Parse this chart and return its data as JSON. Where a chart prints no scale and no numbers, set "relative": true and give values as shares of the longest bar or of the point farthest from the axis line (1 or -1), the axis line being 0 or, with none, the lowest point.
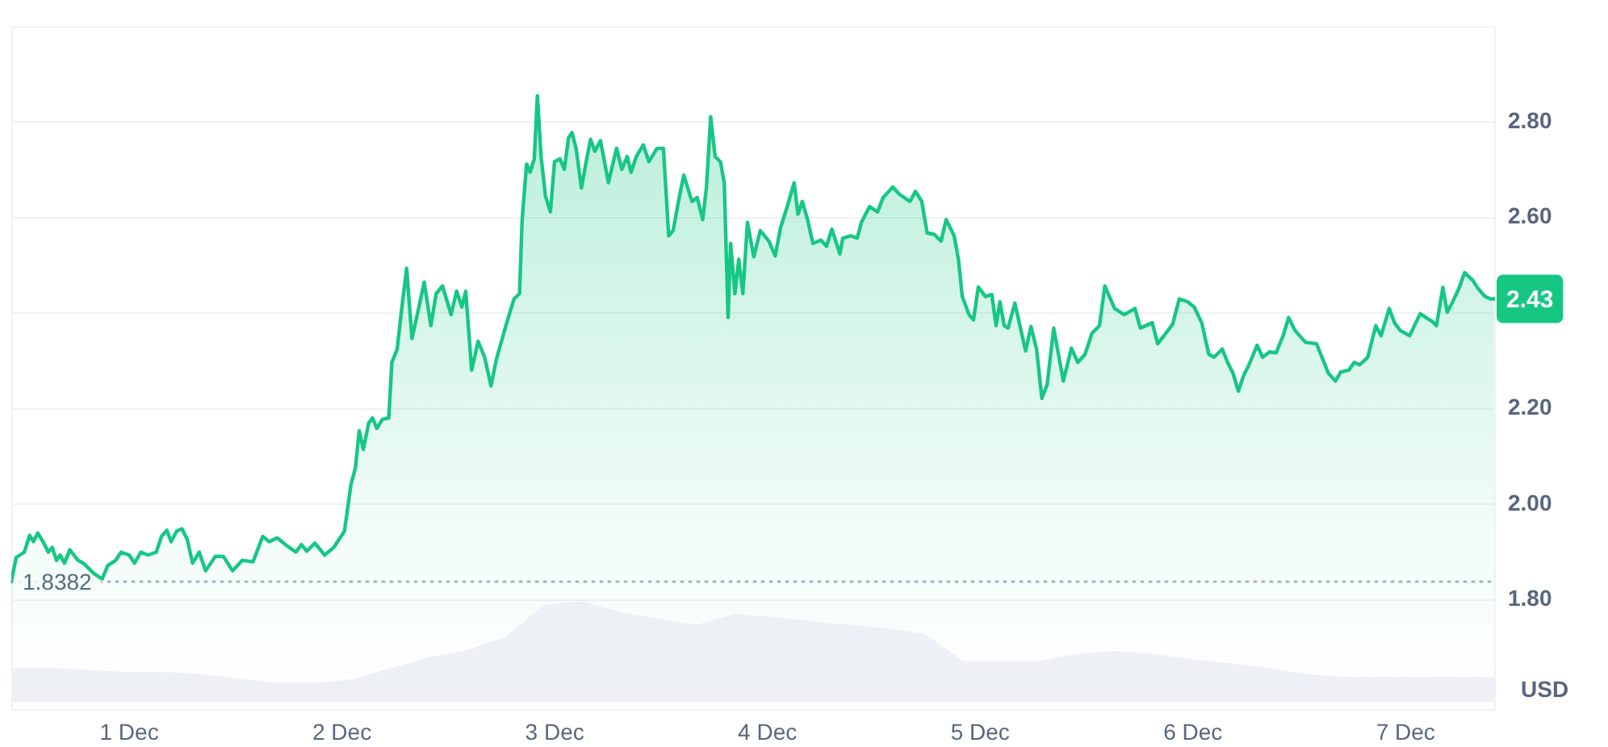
{
  "chart_data": [
    {
      "type": "area",
      "ylabel": "USD",
      "color": "#16c784",
      "x": [
        "--11-30T10:42",
        "--11-30T11:15",
        "--11-30T12:10",
        "--11-30T12:46",
        "--11-30T13:12",
        "--11-30T13:41",
        "--11-30T14:17",
        "--11-30T14:53",
        "--11-30T15:19",
        "--11-30T15:48",
        "--11-30T16:13",
        "--11-30T16:42",
        "--11-30T17:18",
        "--11-30T18:13",
        "--11-30T18:50",
        "--11-30T20:02",
        "--11-30T20:57",
        "--11-30T21:35",
        "--11-30T22:29",
        "--11-30T23:05",
        "--12-01T00:00",
        "--12-01T00:36",
        "--12-01T01:19",
        "--12-01T02:08",
        "--12-01T03:03",
        "--12-01T03:39",
        "--12-01T04:15",
        "--12-01T04:44",
        "--12-01T05:21",
        "--12-01T05:57",
        "--12-01T06:33",
        "--12-01T07:09",
        "--12-01T07:54",
        "--12-01T08:37",
        "--12-01T09:43",
        "--12-01T10:38",
        "--12-01T11:40",
        "--12-01T12:46",
        "--12-01T13:58",
        "--12-01T15:04",
        "--12-01T15:48",
        "--12-01T16:42",
        "--12-01T17:37",
        "--12-01T18:49",
        "--12-01T19:26",
        "--12-01T20:02",
        "--12-01T20:57",
        "--12-01T22:03",
        "--12-01T23:05",
        "--12-02T00:17",
        "--12-02T01:02",
        "--12-02T01:31",
        "--12-02T01:57",
        "--12-02T02:25",
        "--12-02T03:01",
        "--12-02T03:27",
        "--12-02T03:56",
        "--12-02T04:34",
        "--12-02T05:17",
        "--12-02T05:38",
        "--12-02T06:14",
        "--12-02T06:40",
        "--12-02T07:18",
        "--12-02T07:54",
        "--12-02T08:30",
        "--12-02T09:17",
        "--12-02T10:02",
        "--12-02T10:38",
        "--12-02T11:21",
        "--12-02T12:19",
        "--12-02T12:56",
        "--12-02T13:32",
        "--12-02T13:58",
        "--12-02T14:38",
        "--12-02T15:22",
        "--12-02T16:06",
        "--12-02T16:49",
        "--12-02T17:25",
        "--12-02T18:30",
        "--12-02T19:25",
        "--12-02T20:02",
        "--12-02T20:20",
        "--12-02T20:50",
        "--12-02T21:14",
        "--12-02T21:42",
        "--12-02T22:03",
        "--12-02T22:28",
        "--12-02T22:58",
        "--12-02T23:31",
        "--12-02T23:59",
        "--12-03T00:36",
        "--12-03T01:05",
        "--12-03T01:34",
        "--12-03T01:57",
        "--12-03T02:25",
        "--12-03T03:01",
        "--12-03T03:37",
        "--12-03T04:03",
        "--12-03T04:32",
        "--12-03T05:10",
        "--12-03T06:04",
        "--12-03T06:59",
        "--12-03T07:35",
        "--12-03T08:11",
        "--12-03T08:37",
        "--12-03T09:13",
        "--12-03T10:00",
        "--12-03T10:38",
        "--12-03T11:33",
        "--12-03T12:16",
        "--12-03T12:52",
        "--12-03T13:22",
        "--12-03T13:58",
        "--12-03T14:34",
        "--12-03T15:29",
        "--12-03T16:05",
        "--12-03T16:42",
        "--12-03T17:07",
        "--12-03T17:36",
        "--12-03T18:06",
        "--12-03T18:42",
        "--12-03T19:08",
        "--12-03T19:34",
        "--12-03T19:51",
        "--12-03T20:20",
        "--12-03T20:46",
        "--12-03T21:14",
        "--12-03T21:45",
        "--12-03T22:28",
        "--12-03T23:12",
        "--12-04T00:10",
        "--12-04T00:53",
        "--12-04T01:29",
        "--12-04T02:14",
        "--12-04T03:01",
        "--12-04T03:27",
        "--12-04T03:56",
        "--12-04T04:32",
        "--12-04T05:08",
        "--12-04T06:03",
        "--12-04T06:40",
        "--12-04T07:16",
        "--12-04T08:11",
        "--12-04T08:30",
        "--12-04T09:24",
        "--12-04T10:08",
        "--12-04T10:36",
        "--12-04T11:31",
        "--12-04T12:26",
        "--12-04T13:03",
        "--12-04T14:08",
        "--12-04T14:53",
        "--12-04T16:05",
        "--12-04T16:42",
        "--12-04T17:25",
        "--12-04T18:01",
        "--12-04T18:49",
        "--12-04T19:36",
        "--12-04T20:10",
        "--12-04T21:04",
        "--12-04T21:33",
        "--12-04T21:59",
        "--12-04T22:45",
        "--12-04T23:15",
        "--12-04T23:48",
        "--12-05T00:35",
        "--12-05T01:19",
        "--12-05T01:48",
        "--12-05T02:14",
        "--12-05T02:43",
        "--12-05T03:09",
        "--12-05T03:55",
        "--12-05T05:08",
        "--12-05T05:44",
        "--12-05T06:22",
        "--12-05T06:58",
        "--12-05T07:34",
        "--12-05T08:18",
        "--12-05T09:23",
        "--12-05T10:18",
        "--12-05T11:01",
        "--12-05T11:50",
        "--12-05T12:37",
        "--12-05T13:28",
        "--12-05T14:04",
        "--12-05T15:10",
        "--12-05T16:15",
        "--12-05T17:28",
        "--12-05T18:04",
        "--12-05T19:25",
        "--12-05T20:02",
        "--12-05T20:57",
        "--12-05T21:43",
        "--12-05T22:28",
        "--12-05T23:23",
        "--12-06T00:09",
        "--12-06T01:00",
        "--12-06T01:48",
        "--12-06T02:24",
        "--12-06T03:19",
        "--12-06T03:55",
        "--12-06T04:31",
        "--12-06T05:08",
        "--12-06T05:44",
        "--12-06T06:20",
        "--12-06T07:15",
        "--12-06T07:52",
        "--12-06T08:40",
        "--12-06T09:23",
        "--12-06T10:11",
        "--12-06T10:48",
        "--12-06T11:31",
        "--12-06T12:43",
        "--12-06T13:57",
        "--12-06T14:44",
        "--12-06T15:16",
        "--12-06T16:05",
        "--12-06T16:41",
        "--12-06T17:36",
        "--12-06T18:12",
        "--12-06T18:49",
        "--12-06T19:44",
        "--12-06T20:38",
        "--12-06T21:14",
        "--12-06T22:09",
        "--12-06T22:45",
        "--12-06T23:23",
        "--12-07T00:27",
        "--12-07T01:39",
        "--12-07T02:17",
        "--12-07T03:00",
        "--12-07T03:29",
        "--12-07T04:12",
        "--12-07T04:42",
        "--12-07T05:25",
        "--12-07T06:01",
        "--12-07T06:39",
        "--12-07T07:34",
        "--12-07T08:10",
        "--12-07T08:57",
        "--12-07T09:35",
        "--12-07T09:59"
      ],
      "values": [
        1.838,
        1.889,
        1.9,
        1.935,
        1.922,
        1.94,
        1.922,
        1.9,
        1.91,
        1.883,
        1.894,
        1.877,
        1.905,
        1.883,
        1.877,
        1.855,
        1.844,
        1.872,
        1.883,
        1.9,
        1.894,
        1.877,
        1.9,
        1.894,
        1.9,
        1.933,
        1.946,
        1.922,
        1.944,
        1.949,
        1.927,
        1.877,
        1.9,
        1.861,
        1.891,
        1.891,
        1.861,
        1.883,
        1.88,
        1.933,
        1.922,
        1.93,
        1.916,
        1.9,
        1.916,
        1.902,
        1.919,
        1.894,
        1.91,
        1.944,
        2.043,
        2.076,
        2.154,
        2.115,
        2.17,
        2.181,
        2.159,
        2.178,
        2.181,
        2.297,
        2.325,
        2.397,
        2.494,
        2.347,
        2.397,
        2.465,
        2.374,
        2.441,
        2.457,
        2.397,
        2.446,
        2.413,
        2.446,
        2.281,
        2.341,
        2.308,
        2.248,
        2.303,
        2.374,
        2.43,
        2.441,
        2.596,
        2.712,
        2.695,
        2.723,
        2.855,
        2.728,
        2.645,
        2.612,
        2.717,
        2.723,
        2.701,
        2.767,
        2.778,
        2.745,
        2.662,
        2.723,
        2.764,
        2.739,
        2.761,
        2.673,
        2.745,
        2.701,
        2.728,
        2.695,
        2.728,
        2.752,
        2.717,
        2.745,
        2.745,
        2.562,
        2.573,
        2.634,
        2.689,
        2.634,
        2.642,
        2.596,
        2.662,
        2.811,
        2.728,
        2.717,
        2.673,
        2.391,
        2.546,
        2.441,
        2.513,
        2.441,
        2.59,
        2.518,
        2.573,
        2.551,
        2.52,
        2.579,
        2.623,
        2.673,
        2.607,
        2.634,
        2.596,
        2.546,
        2.553,
        2.54,
        2.576,
        2.524,
        2.557,
        2.562,
        2.557,
        2.59,
        2.623,
        2.612,
        2.642,
        2.664,
        2.649,
        2.634,
        2.655,
        2.634,
        2.568,
        2.565,
        2.551,
        2.596,
        2.562,
        2.513,
        2.435,
        2.397,
        2.386,
        2.455,
        2.435,
        2.439,
        2.374,
        2.424,
        2.374,
        2.369,
        2.421,
        2.321,
        2.372,
        2.325,
        2.222,
        2.251,
        2.369,
        2.258,
        2.327,
        2.297,
        2.314,
        2.358,
        2.374,
        2.457,
        2.41,
        2.397,
        2.41,
        2.369,
        2.38,
        2.336,
        2.358,
        2.377,
        2.43,
        2.424,
        2.413,
        2.38,
        2.314,
        2.308,
        2.325,
        2.297,
        2.275,
        2.237,
        2.27,
        2.292,
        2.333,
        2.308,
        2.319,
        2.317,
        2.353,
        2.391,
        2.364,
        2.339,
        2.336,
        2.3,
        2.275,
        2.258,
        2.277,
        2.281,
        2.297,
        2.292,
        2.308,
        2.374,
        2.353,
        2.41,
        2.38,
        2.364,
        2.353,
        2.399,
        2.391,
        2.383,
        2.374,
        2.454,
        2.402,
        2.428,
        2.452,
        2.485,
        2.469,
        2.452,
        2.435,
        2.43,
        2.43
      ],
      "xlim": [
        "--11-30T10:42",
        "--12-07T10:05"
      ],
      "ylim": [
        1.57,
        3.0
      ],
      "xticks": [
        {
          "value": "--12-01",
          "label": "1 Dec"
        },
        {
          "value": "--12-02",
          "label": "2 Dec"
        },
        {
          "value": "--12-03",
          "label": "3 Dec"
        },
        {
          "value": "--12-04",
          "label": "4 Dec"
        },
        {
          "value": "--12-05",
          "label": "5 Dec"
        },
        {
          "value": "--12-06",
          "label": "6 Dec"
        },
        {
          "value": "--12-07",
          "label": "7 Dec"
        }
      ],
      "yticks": [
        {
          "value": 1.8,
          "label": "1.80"
        },
        {
          "value": 2.0,
          "label": "2.00"
        },
        {
          "value": 2.2,
          "label": "2.20"
        },
        {
          "value": 2.4,
          "label": null
        },
        {
          "value": 2.6,
          "label": "2.60"
        },
        {
          "value": 2.8,
          "label": "2.80"
        }
      ],
      "grid": "y",
      "ref_lines": [
        {
          "axis": "y",
          "value": 1.8382,
          "label": "1.8382",
          "line_style": "dotted",
          "color": "#a6b0c3"
        }
      ],
      "annotations": [
        {
          "text": "2.43",
          "y": 2.43
        }
      ]
    },
    {
      "type": "area",
      "relative": true,
      "color": "#edf0f4",
      "tick_labels": false,
      "categories": [
        null,
        null,
        null,
        null,
        null,
        null,
        null,
        null,
        null,
        null,
        null,
        null,
        null,
        null,
        null,
        null,
        null,
        null,
        null,
        null,
        null,
        null,
        null,
        null,
        null,
        null,
        null,
        null,
        null,
        null,
        null,
        null,
        null,
        null,
        null,
        null,
        null,
        null,
        null,
        null
      ],
      "values": [
        0.33,
        0.33,
        0.31,
        0.29,
        0.29,
        0.27,
        0.22,
        0.18,
        0.18,
        0.22,
        0.33,
        0.44,
        0.51,
        0.64,
        0.96,
        1,
        0.89,
        0.82,
        0.76,
        0.87,
        0.84,
        0.8,
        0.76,
        0.73,
        0.67,
        0.4,
        0.4,
        0.4,
        0.47,
        0.5,
        0.47,
        0.42,
        0.38,
        0.33,
        0.27,
        0.24,
        0.24,
        0.24,
        0.24,
        0.24
      ]
    }
  ]
}
